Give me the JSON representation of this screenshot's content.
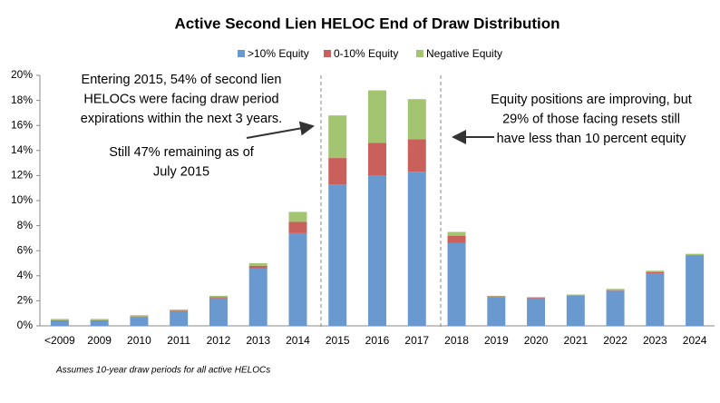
{
  "chart_data": {
    "type": "stacked_bar",
    "title": "Active Second Lien HELOC End of Draw Distribution",
    "categories": [
      "<2009",
      "2009",
      "2010",
      "2011",
      "2012",
      "2013",
      "2014",
      "2015",
      "2016",
      "2017",
      "2018",
      "2019",
      "2020",
      "2021",
      "2022",
      "2023",
      "2024"
    ],
    "series": [
      {
        "name": ">10% Equity",
        "color": "#6a99d0",
        "values": [
          0.4,
          0.4,
          0.7,
          1.1,
          2.2,
          4.6,
          7.4,
          11.3,
          12.0,
          12.3,
          6.6,
          2.3,
          2.2,
          2.4,
          2.8,
          4.2,
          5.6
        ]
      },
      {
        "name": "0-10% Equity",
        "color": "#c9605c",
        "values": [
          0.05,
          0.05,
          0.05,
          0.1,
          0.1,
          0.2,
          0.9,
          2.1,
          2.6,
          2.6,
          0.6,
          0.05,
          0.05,
          0.05,
          0.05,
          0.1,
          0.05
        ]
      },
      {
        "name": "Negative Equity",
        "color": "#a3c470",
        "values": [
          0.1,
          0.1,
          0.1,
          0.1,
          0.1,
          0.2,
          0.8,
          3.4,
          4.2,
          3.2,
          0.3,
          0.05,
          0.05,
          0.05,
          0.1,
          0.1,
          0.1
        ]
      }
    ],
    "ylim": [
      0,
      20
    ],
    "yticks": [
      {
        "value": 0,
        "label": "0%"
      },
      {
        "value": 2,
        "label": "2%"
      },
      {
        "value": 4,
        "label": "4%"
      },
      {
        "value": 6,
        "label": "6%"
      },
      {
        "value": 8,
        "label": "8%"
      },
      {
        "value": 10,
        "label": "10%"
      },
      {
        "value": 12,
        "label": "12%"
      },
      {
        "value": 14,
        "label": "14%"
      },
      {
        "value": 16,
        "label": "16%"
      },
      {
        "value": 18,
        "label": "18%"
      },
      {
        "value": 20,
        "label": "20%"
      }
    ],
    "annotations": [
      [
        "Entering 2015, 54% of second lien",
        "HELOCs were facing draw period",
        "expirations within the next 3 years."
      ],
      [
        "Still 47% remaining as of",
        "July 2015"
      ],
      [
        "Equity positions are improving, but",
        "29% of those facing resets still",
        "have less than 10 percent equity"
      ]
    ],
    "footnote": "Assumes 10-year draw periods for all active HELOCs"
  }
}
